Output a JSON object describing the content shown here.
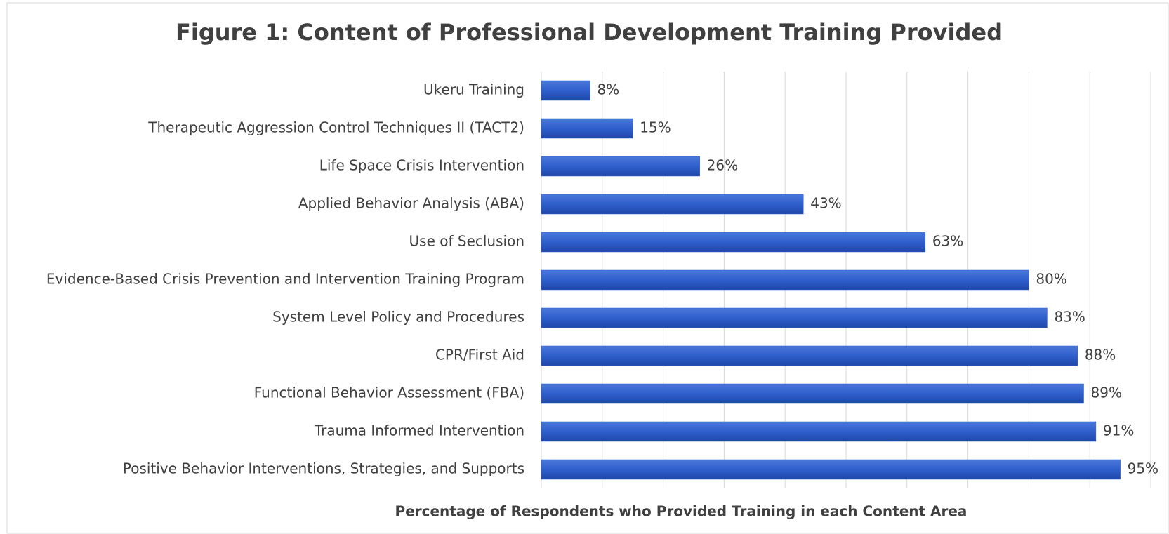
{
  "chart_data": {
    "type": "bar",
    "orientation": "horizontal",
    "title": "Figure 1: Content of Professional Development Training Provided",
    "x_label": "Percentage of Respondents who Provided Training in each Content Area",
    "categories": [
      "Ukeru Training",
      "Therapeutic Aggression Control Techniques II (TACT2)",
      "Life Space Crisis Intervention",
      "Applied Behavior Analysis (ABA)",
      "Use of Seclusion",
      "Evidence-Based Crisis Prevention and Intervention Training Program",
      "System Level Policy and Procedures ",
      "CPR/First Aid",
      "Functional Behavior Assessment (FBA)",
      "Trauma Informed Intervention",
      "Positive Behavior Interventions, Strategies, and Supports"
    ],
    "values": [
      8,
      15,
      26,
      43,
      63,
      80,
      83,
      88,
      89,
      91,
      95
    ],
    "value_labels": [
      "8%",
      "15%",
      "26%",
      "43%",
      "63%",
      "80%",
      "83%",
      "88%",
      "89%",
      "91%",
      "95%"
    ],
    "color": "#2f5fcc",
    "xlim": [
      0,
      100
    ],
    "xticks": [
      0,
      10,
      20,
      30,
      40,
      50,
      60,
      70,
      80,
      90,
      100
    ],
    "grid": true
  }
}
